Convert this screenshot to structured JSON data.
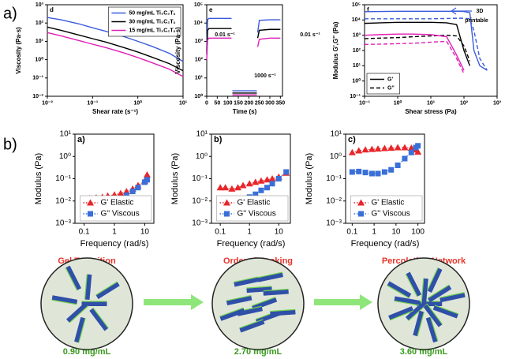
{
  "figure_labels": [
    "a)",
    "b)"
  ],
  "chart_data": [
    {
      "type": "line",
      "panel_label": "d",
      "xlabel": "Shear rate (s⁻¹)",
      "ylabel": "Viscosity (Pa·s)",
      "xscale": "log",
      "yscale": "log",
      "legend": "upper right",
      "xlim": [
        0.01,
        10
      ],
      "xticks": [
        {
          "value": 0.01,
          "label": "10⁻²"
        },
        {
          "value": 0.1,
          "label": "10⁻¹"
        },
        {
          "value": 1,
          "label": "10⁰"
        },
        {
          "value": 10,
          "label": "10¹"
        }
      ],
      "ylim": [
        0.01,
        1000
      ],
      "yticks": [
        {
          "value": 0.01,
          "label": "10⁻²"
        },
        {
          "value": 0.1,
          "label": "10⁻¹"
        },
        {
          "value": 1,
          "label": "10⁰"
        },
        {
          "value": 10,
          "label": "10¹"
        },
        {
          "value": 100,
          "label": "10²"
        },
        {
          "value": 1000,
          "label": "10³"
        }
      ],
      "x": [
        0.01,
        0.02,
        0.05,
        0.1,
        0.2,
        0.5,
        1,
        2,
        5,
        10
      ],
      "series": [
        {
          "name": "50 mg/mL Ti₃C₂Tₓ",
          "color": "#3b5bdb",
          "line_style": "solid",
          "values": [
            200,
            150,
            90,
            55,
            35,
            18,
            10,
            5.5,
            2.2,
            0.8
          ]
        },
        {
          "name": "30 mg/mL Ti₃C₂Tₓ",
          "color": "#000000",
          "line_style": "solid",
          "values": [
            60,
            40,
            22,
            14,
            9,
            4.5,
            2.6,
            1.4,
            0.6,
            0.25
          ]
        },
        {
          "name": "15 mg/mL Ti₃C₂Tₓ",
          "color": "#e01fb5",
          "line_style": "solid",
          "values": [
            30,
            20,
            11,
            7,
            4.5,
            2.3,
            1.3,
            0.7,
            0.3,
            0.12
          ]
        }
      ]
    },
    {
      "type": "line",
      "panel_label": "e",
      "xlabel": "Time (s)",
      "ylabel": "Viscosity (Pa·s)",
      "yscale": "log",
      "annotations": [
        "0.01 s⁻¹",
        "0.01 s⁻¹",
        "1000 s⁻¹"
      ],
      "xlim": [
        0,
        360
      ],
      "xticks": [
        0,
        50,
        100,
        150,
        200,
        250,
        300,
        350
      ],
      "ylim": [
        1,
        100000
      ],
      "yticks": [
        {
          "value": 1,
          "label": "10⁰"
        },
        {
          "value": 10,
          "label": "10¹"
        },
        {
          "value": 100,
          "label": "10²"
        },
        {
          "value": 1000,
          "label": "10³"
        },
        {
          "value": 10000,
          "label": "10⁴"
        },
        {
          "value": 100000,
          "label": "10⁵"
        }
      ],
      "x": [
        0,
        4,
        10,
        60,
        118,
        119,
        122,
        180,
        238,
        239,
        242,
        250,
        300,
        350
      ],
      "series": [
        {
          "color": "#3b5bdb",
          "line_style": "solid",
          "values": [
            300,
            15000,
            18000,
            18000,
            18000,
            null,
            2.0,
            2.0,
            2.0,
            null,
            3000,
            14000,
            15000,
            15000
          ]
        },
        {
          "color": "#000000",
          "line_style": "solid",
          "values": [
            200,
            4000,
            5000,
            5000,
            5000,
            null,
            1.5,
            1.5,
            1.5,
            null,
            1500,
            4000,
            4500,
            4500
          ]
        },
        {
          "color": "#e01fb5",
          "line_style": "solid",
          "values": [
            100,
            1200,
            1500,
            1500,
            1500,
            null,
            1.2,
            1.2,
            1.2,
            null,
            500,
            1300,
            1500,
            1500
          ]
        }
      ]
    },
    {
      "type": "line",
      "panel_label": "f",
      "xlabel": "Shear stress (Pa)",
      "ylabel": "Modulus G',G'' (Pa)",
      "xscale": "log",
      "yscale": "log",
      "legend": "lower left",
      "annotations": [
        "3D",
        "printable"
      ],
      "xlim": [
        0.1,
        1000
      ],
      "xticks": [
        {
          "value": 0.1,
          "label": "10⁻¹"
        },
        {
          "value": 1,
          "label": "10⁰"
        },
        {
          "value": 10,
          "label": "10¹"
        },
        {
          "value": 100,
          "label": "10²"
        },
        {
          "value": 1000,
          "label": "10³"
        }
      ],
      "ylim": [
        0.1,
        100000
      ],
      "yticks": [
        {
          "value": 0.1,
          "label": "10⁻¹"
        },
        {
          "value": 1,
          "label": "10⁰"
        },
        {
          "value": 10,
          "label": "10¹"
        },
        {
          "value": 100,
          "label": "10²"
        },
        {
          "value": 1000,
          "label": "10³"
        },
        {
          "value": 10000,
          "label": "10⁴"
        },
        {
          "value": 100000,
          "label": "10⁵"
        }
      ],
      "x": [
        0.1,
        0.3,
        1,
        3,
        10,
        30,
        60,
        100,
        150,
        200,
        300,
        500
      ],
      "series": [
        {
          "color": "#3b5bdb",
          "line_style": "solid",
          "values": [
            35000,
            36000,
            37000,
            37000,
            37000,
            37000,
            37000,
            36000,
            30000,
            100,
            10,
            5
          ]
        },
        {
          "color": "#3b5bdb",
          "line_style": "dashed",
          "values": [
            12000,
            12000,
            12000,
            12000,
            12000,
            12500,
            13000,
            13000,
            12000,
            2000,
            30,
            5
          ]
        },
        {
          "name": "G'",
          "color": "#000000",
          "line_style": "solid",
          "values": [
            6000,
            6500,
            7000,
            7000,
            7000,
            6500,
            5000,
            100,
            10,
            null,
            null,
            null
          ]
        },
        {
          "name": "G''",
          "color": "#000000",
          "line_style": "dashed",
          "values": [
            600,
            650,
            700,
            800,
            900,
            1000,
            900,
            200,
            20,
            null,
            null,
            null
          ]
        },
        {
          "color": "#e01fb5",
          "line_style": "solid",
          "values": [
            1000,
            1100,
            1200,
            1200,
            1100,
            800,
            50,
            5,
            null,
            null,
            null,
            null
          ]
        },
        {
          "color": "#e01fb5",
          "line_style": "dashed",
          "values": [
            250,
            260,
            280,
            300,
            350,
            400,
            30,
            3,
            null,
            null,
            null,
            null
          ]
        }
      ]
    },
    {
      "type": "scatter",
      "panel_label": "a)",
      "xlabel": "Frequency (rad/s)",
      "ylabel": "Modulus (Pa)",
      "xscale": "log",
      "yscale": "log",
      "legend": "lower right",
      "xlim": [
        0.05,
        20
      ],
      "xticks": [
        0.1,
        1,
        10
      ],
      "ylim": [
        0.001,
        10
      ],
      "yticks": [
        {
          "value": 0.001,
          "label": "10⁻³"
        },
        {
          "value": 0.01,
          "label": "10⁻²"
        },
        {
          "value": 0.1,
          "label": "10⁻¹"
        },
        {
          "value": 1,
          "label": "10⁰"
        },
        {
          "value": 10,
          "label": "10¹"
        }
      ],
      "x": [
        0.1,
        0.15,
        0.25,
        0.4,
        0.6,
        1,
        1.6,
        2.5,
        4,
        6,
        10,
        12
      ],
      "series": [
        {
          "name": "G' Elastic",
          "color": "#e8262a",
          "marker": "triangle",
          "values": [
            0.012,
            0.013,
            0.014,
            0.015,
            0.017,
            0.019,
            0.022,
            0.027,
            0.035,
            0.05,
            0.08,
            0.15
          ]
        },
        {
          "name": "G'' Viscous",
          "color": "#3a6fd8",
          "marker": "square",
          "values": [
            0.004,
            0.005,
            0.006,
            0.007,
            0.008,
            0.01,
            0.013,
            0.018,
            0.027,
            0.04,
            0.07,
            0.09
          ]
        }
      ]
    },
    {
      "type": "scatter",
      "panel_label": "b)",
      "xlabel": "Frequency (rad/s)",
      "ylabel": "Modulus (Pa)",
      "xscale": "log",
      "yscale": "log",
      "legend": "lower right",
      "xlim": [
        0.05,
        25
      ],
      "xticks": [
        0.1,
        1,
        10
      ],
      "ylim": [
        0.001,
        10
      ],
      "yticks": [
        {
          "value": 0.001,
          "label": "10⁻³"
        },
        {
          "value": 0.01,
          "label": "10⁻²"
        },
        {
          "value": 0.1,
          "label": "10⁻¹"
        },
        {
          "value": 1,
          "label": "10⁰"
        },
        {
          "value": 10,
          "label": "10¹"
        }
      ],
      "x": [
        0.1,
        0.15,
        0.25,
        0.4,
        0.6,
        1,
        1.6,
        2.5,
        4,
        6,
        10,
        18
      ],
      "series": [
        {
          "name": "G' Elastic",
          "color": "#e8262a",
          "marker": "triangle",
          "values": [
            0.04,
            0.04,
            0.035,
            0.04,
            0.05,
            0.06,
            0.07,
            0.08,
            0.09,
            0.1,
            0.12,
            0.18
          ]
        },
        {
          "name": "G'' Viscous",
          "color": "#3a6fd8",
          "marker": "square",
          "values": [
            0.007,
            0.007,
            0.008,
            0.01,
            0.012,
            0.015,
            0.02,
            0.03,
            0.04,
            0.06,
            0.1,
            0.2
          ]
        }
      ]
    },
    {
      "type": "scatter",
      "panel_label": "c)",
      "xlabel": "Frequency (rad/s)",
      "ylabel": "Modulus (Pa)",
      "xscale": "log",
      "yscale": "log",
      "legend": "lower right",
      "xlim": [
        0.05,
        200
      ],
      "xticks": [
        0.1,
        1,
        10,
        100
      ],
      "ylim": [
        0.001,
        10
      ],
      "yticks": [
        {
          "value": 0.001,
          "label": "10⁻³"
        },
        {
          "value": 0.01,
          "label": "10⁻²"
        },
        {
          "value": 0.1,
          "label": "10⁻¹"
        },
        {
          "value": 1,
          "label": "10⁰"
        },
        {
          "value": 10,
          "label": "10¹"
        }
      ],
      "x": [
        0.1,
        0.2,
        0.4,
        0.8,
        1.5,
        3,
        6,
        12,
        25,
        50,
        80,
        100
      ],
      "series": [
        {
          "name": "G' Elastic",
          "color": "#e8262a",
          "marker": "triangle",
          "values": [
            1.5,
            1.8,
            2,
            2.1,
            2.2,
            2.3,
            2.4,
            2.5,
            2.5,
            2.4,
            2.0,
            1.6
          ]
        },
        {
          "name": "G'' Viscous",
          "color": "#3a6fd8",
          "marker": "square",
          "values": [
            0.2,
            0.21,
            0.19,
            0.17,
            0.17,
            0.2,
            0.25,
            0.4,
            0.8,
            1.5,
            2.5,
            3.0
          ]
        }
      ]
    }
  ],
  "illustrations": [
    {
      "title": "Gel Transition",
      "concentration": "0.90 mg/mL"
    },
    {
      "title": "Ordered Packing",
      "concentration": "2.70 mg/mL"
    },
    {
      "title": "Percolating Network",
      "concentration": "3.60 mg/mL"
    }
  ]
}
